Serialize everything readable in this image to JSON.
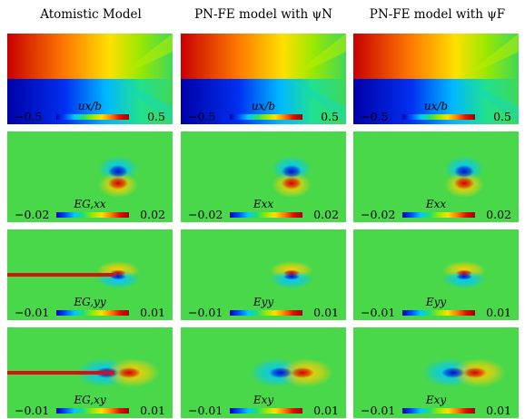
{
  "columns": [
    {
      "title": "Atomistic Model"
    },
    {
      "title": "PN-FE model with ψN"
    },
    {
      "title": "PN-FE model with ψF"
    }
  ],
  "rows": [
    {
      "field": "ux",
      "colorbar": {
        "min": "−0.5",
        "max": "0.5"
      },
      "labels": [
        "ux/b",
        "ux/b",
        "ux/b"
      ]
    },
    {
      "field": "exx",
      "colorbar": {
        "min": "−0.02",
        "max": "0.02"
      },
      "labels": [
        "EG,xx",
        "Exx",
        "Exx"
      ]
    },
    {
      "field": "eyy",
      "colorbar": {
        "min": "−0.01",
        "max": "0.01"
      },
      "labels": [
        "EG,yy",
        "Eyy",
        "Eyy"
      ]
    },
    {
      "field": "exy",
      "colorbar": {
        "min": "−0.01",
        "max": "0.01"
      },
      "labels": [
        "EG,xy",
        "Exy",
        "Exy"
      ]
    }
  ],
  "colormap": [
    "#0000b0",
    "#0050ff",
    "#00c8ff",
    "#20e070",
    "#9be800",
    "#ffe000",
    "#ff8000",
    "#e01000",
    "#a00000"
  ]
}
